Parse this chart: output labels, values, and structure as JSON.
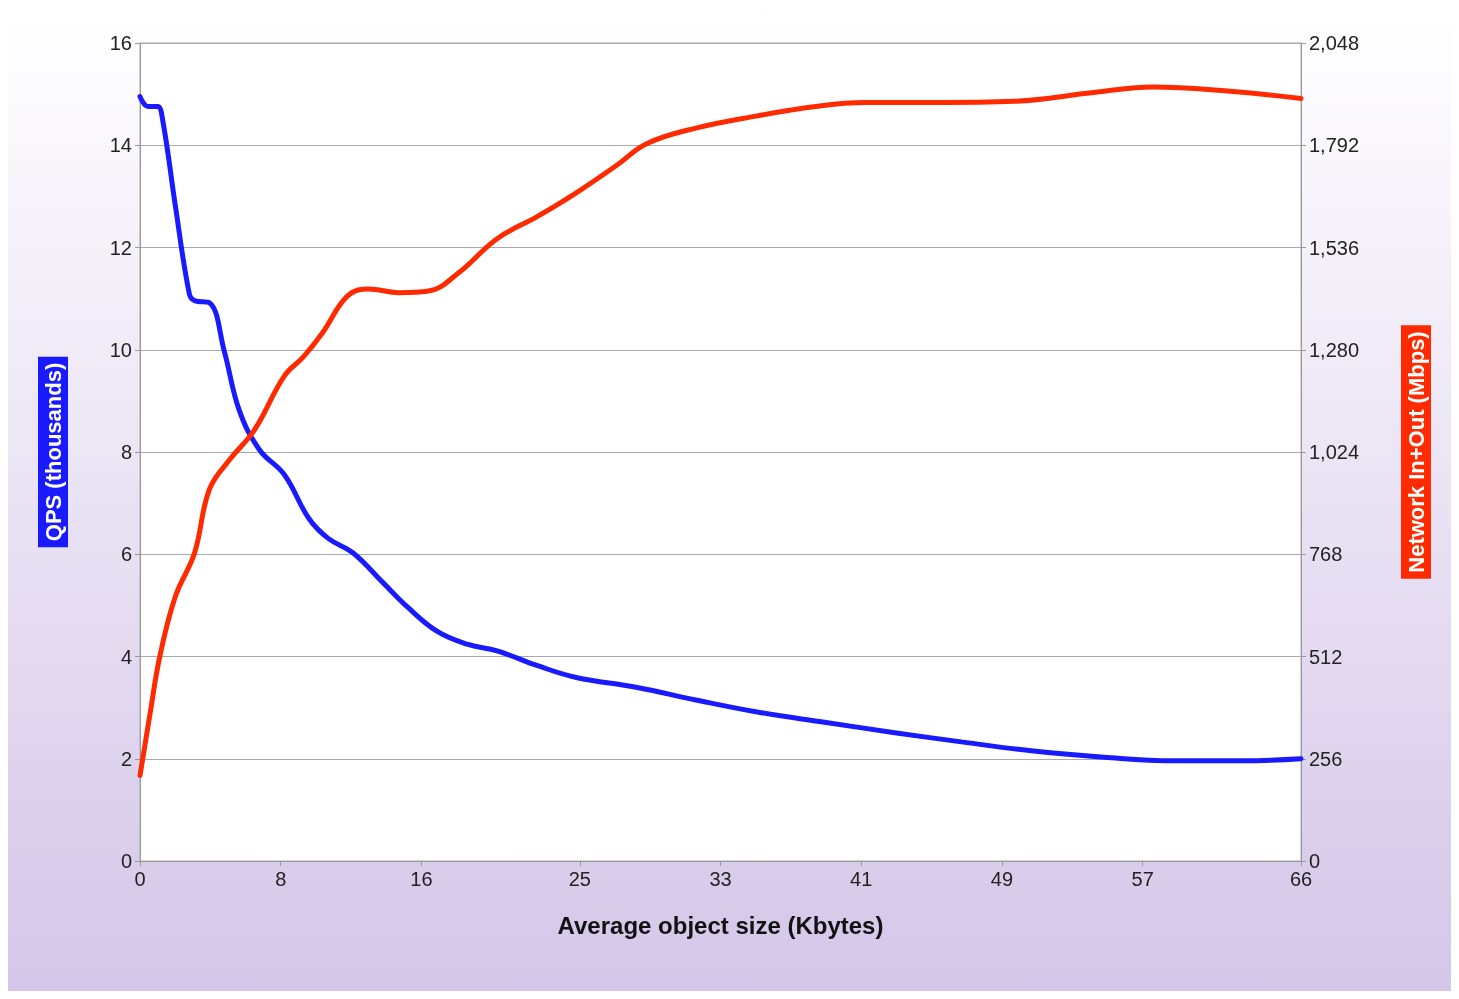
{
  "chart_data": {
    "type": "line",
    "xlabel": "Average object size (Kbytes)",
    "ylabel": "QPS (thousands)",
    "y2label": "Network In+Out (Mbps)",
    "xlim": [
      0,
      66
    ],
    "xticks": [
      0,
      8,
      16,
      25,
      33,
      41,
      49,
      57,
      66
    ],
    "ylim": [
      0,
      16
    ],
    "yticks": [
      0,
      2,
      4,
      6,
      8,
      10,
      12,
      14,
      16
    ],
    "y2lim": [
      0,
      2048
    ],
    "y2ticks": [
      0,
      256,
      512,
      768,
      {
        "value": 1024,
        "label": "1,024"
      },
      {
        "value": 1280,
        "label": "1,280"
      },
      {
        "value": 1536,
        "label": "1,536"
      },
      {
        "value": 1792,
        "label": "1,792"
      },
      {
        "value": 2048,
        "label": "2,048"
      }
    ],
    "grid": "y",
    "marker": "none",
    "line_style": "solid",
    "series": [
      {
        "color": "#1a1aff",
        "x": [
          0,
          0.45,
          1,
          1.3,
          2,
          2.8,
          3.1,
          3.95,
          4.8,
          5.65,
          6.8,
          8.2,
          9.6,
          10.7,
          12.1,
          13.8,
          15.2,
          16.9,
          18.6,
          20.3,
          22.6,
          24.8,
          28.2,
          31.6,
          35,
          39,
          42.9,
          46.9,
          50.8,
          54.8,
          58.7,
          62.7,
          66
        ],
        "values": [
          14.95,
          14.76,
          14.76,
          14.47,
          12.84,
          11.1,
          10.96,
          10.92,
          9.96,
          8.81,
          8.04,
          7.56,
          6.7,
          6.31,
          6.03,
          5.45,
          4.97,
          4.49,
          4.24,
          4.11,
          3.82,
          3.59,
          3.4,
          3.15,
          2.92,
          2.71,
          2.51,
          2.32,
          2.15,
          2.03,
          1.96,
          1.96,
          2.0
        ]
      },
      {
        "color": "#ff2a00",
        "axis": "y2",
        "x": [
          0,
          0.56,
          1.13,
          2,
          3.1,
          3.95,
          5.1,
          6.5,
          8.2,
          9.3,
          10.4,
          11.8,
          13,
          14.7,
          16.4,
          18.1,
          20.3,
          22.6,
          24.8,
          27.1,
          28.8,
          31.6,
          35,
          38.4,
          41.2,
          45.2,
          49.7,
          54.2,
          57.6,
          61.5,
          66
        ],
        "values": [
          214,
          366,
          513,
          661,
          771,
          931,
          1005,
          1079,
          1214,
          1263,
          1324,
          1415,
          1432,
          1423,
          1427,
          1472,
          1558,
          1614,
          1673,
          1742,
          1796,
          1835,
          1865,
          1889,
          1899,
          1899,
          1902,
          1924,
          1938,
          1929,
          1909
        ]
      }
    ]
  }
}
